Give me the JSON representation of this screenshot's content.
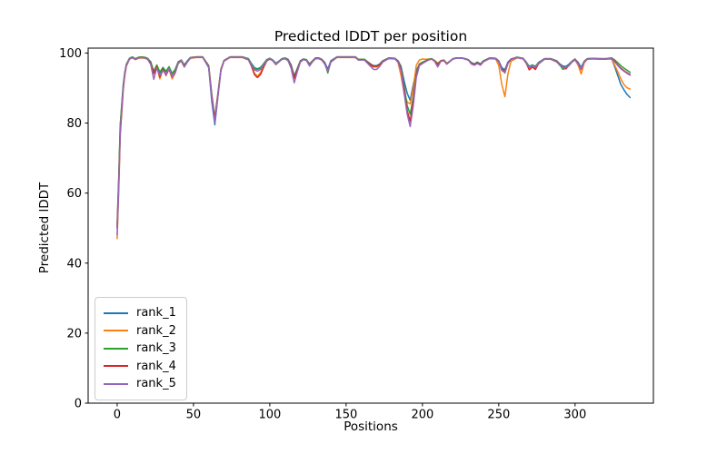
{
  "figure": {
    "title": "Predicted lDDT per position",
    "xlabel": "Positions",
    "ylabel": "Predicted lDDT"
  },
  "chart_data": {
    "type": "line",
    "title": "Predicted lDDT per position",
    "xlabel": "Positions",
    "ylabel": "Predicted lDDT",
    "xlim": [
      -19.0,
      351.3
    ],
    "ylim": [
      0,
      101.4
    ],
    "xticks": [
      0,
      50,
      100,
      150,
      200,
      250,
      300
    ],
    "yticks": [
      0,
      20,
      40,
      60,
      80,
      100
    ],
    "grid": false,
    "legend_position": "lower left",
    "x": [
      0,
      1,
      2,
      3,
      4,
      5,
      6,
      8,
      10,
      12,
      14,
      16,
      18,
      20,
      22,
      24,
      26,
      28,
      30,
      32,
      34,
      36,
      38,
      40,
      42,
      44,
      46,
      48,
      52,
      56,
      60,
      62,
      64,
      66,
      68,
      70,
      74,
      78,
      82,
      86,
      88,
      90,
      92,
      94,
      96,
      98,
      100,
      102,
      104,
      106,
      108,
      110,
      112,
      114,
      116,
      118,
      120,
      122,
      124,
      126,
      128,
      130,
      132,
      134,
      136,
      138,
      140,
      144,
      148,
      152,
      156,
      158,
      162,
      166,
      168,
      170,
      172,
      174,
      178,
      182,
      184,
      186,
      188,
      190,
      192,
      194,
      196,
      198,
      200,
      202,
      204,
      206,
      208,
      210,
      212,
      214,
      216,
      218,
      220,
      222,
      224,
      226,
      228,
      230,
      232,
      234,
      236,
      238,
      240,
      244,
      248,
      250,
      252,
      254,
      256,
      258,
      262,
      266,
      268,
      270,
      272,
      274,
      276,
      280,
      284,
      288,
      290,
      292,
      294,
      296,
      298,
      300,
      302,
      304,
      306,
      308,
      312,
      316,
      320,
      324,
      326,
      328,
      330,
      332,
      334,
      336
    ],
    "series": [
      {
        "name": "rank_1",
        "color": "#1f77b4",
        "values": [
          50.0,
          63.0,
          79.0,
          85.0,
          90.5,
          94.2,
          96.6,
          98.4,
          98.8,
          98.3,
          98.7,
          98.8,
          98.7,
          98.4,
          97.5,
          94.5,
          96.5,
          94.3,
          95.9,
          94.6,
          96.0,
          94.0,
          95.2,
          97.5,
          98.0,
          96.6,
          97.8,
          98.7,
          98.9,
          98.9,
          95.8,
          86.0,
          79.5,
          87.5,
          95.0,
          97.8,
          98.9,
          98.9,
          98.9,
          98.4,
          97.0,
          95.8,
          95.5,
          95.9,
          97.0,
          98.1,
          98.5,
          98.0,
          97.1,
          97.7,
          98.4,
          98.6,
          98.2,
          96.6,
          93.4,
          95.6,
          97.8,
          98.3,
          98.1,
          96.9,
          97.8,
          98.6,
          98.6,
          98.2,
          97.3,
          95.4,
          97.8,
          98.9,
          98.9,
          98.9,
          98.9,
          98.2,
          98.2,
          96.9,
          96.4,
          96.4,
          96.9,
          97.8,
          98.6,
          98.5,
          97.8,
          96.2,
          92.0,
          88.5,
          86.5,
          91.0,
          95.0,
          96.8,
          97.2,
          97.6,
          98.1,
          98.4,
          97.8,
          96.8,
          97.7,
          98.0,
          97.0,
          97.7,
          98.4,
          98.6,
          98.6,
          98.6,
          98.4,
          98.1,
          97.3,
          96.9,
          97.4,
          96.9,
          97.8,
          98.6,
          98.5,
          97.8,
          95.8,
          95.2,
          97.4,
          98.3,
          98.8,
          98.5,
          97.4,
          96.2,
          96.6,
          96.2,
          97.3,
          98.4,
          98.4,
          97.8,
          96.9,
          96.3,
          96.2,
          96.8,
          97.7,
          98.3,
          97.3,
          95.9,
          97.7,
          98.4,
          98.5,
          98.4,
          98.4,
          98.4,
          96.0,
          93.5,
          91.0,
          89.5,
          88.2,
          87.3
        ]
      },
      {
        "name": "rank_2",
        "color": "#ff7f0e",
        "values": [
          47.0,
          60.0,
          76.0,
          83.0,
          89.5,
          93.5,
          96.2,
          98.2,
          98.6,
          98.1,
          98.5,
          98.6,
          98.5,
          98.2,
          96.8,
          94.0,
          96.0,
          92.6,
          95.2,
          93.8,
          95.4,
          92.6,
          94.2,
          97.0,
          97.7,
          96.0,
          97.4,
          98.5,
          98.7,
          98.7,
          96.0,
          87.5,
          81.0,
          88.0,
          95.1,
          97.7,
          98.7,
          98.7,
          98.7,
          98.0,
          96.2,
          94.2,
          93.3,
          94.5,
          96.2,
          97.7,
          98.3,
          97.8,
          96.7,
          97.5,
          98.2,
          98.4,
          97.8,
          95.9,
          92.7,
          95.0,
          97.5,
          98.1,
          97.9,
          96.4,
          97.5,
          98.4,
          98.4,
          98.0,
          96.9,
          94.8,
          97.5,
          98.7,
          98.7,
          98.7,
          98.7,
          98.0,
          98.0,
          96.4,
          96.0,
          96.0,
          96.5,
          97.5,
          98.4,
          98.3,
          97.3,
          93.5,
          88.5,
          86.0,
          85.5,
          90.0,
          96.5,
          98.0,
          98.3,
          98.2,
          98.3,
          98.4,
          97.9,
          97.1,
          97.8,
          98.0,
          97.1,
          97.7,
          98.3,
          98.5,
          98.5,
          98.5,
          98.3,
          98.0,
          97.0,
          96.6,
          97.1,
          96.6,
          97.5,
          98.4,
          98.3,
          96.5,
          91.0,
          87.5,
          94.0,
          97.7,
          98.6,
          98.3,
          97.0,
          95.8,
          96.2,
          95.8,
          96.9,
          98.2,
          98.2,
          97.4,
          96.5,
          95.9,
          95.8,
          96.4,
          97.4,
          98.0,
          96.5,
          94.0,
          97.2,
          98.2,
          98.3,
          98.2,
          98.2,
          98.3,
          96.5,
          94.6,
          92.6,
          91.0,
          90.1,
          89.7
        ]
      },
      {
        "name": "rank_3",
        "color": "#2ca02c",
        "values": [
          51.0,
          64.0,
          79.5,
          85.5,
          91.0,
          94.5,
          96.8,
          98.5,
          98.9,
          98.4,
          98.8,
          98.9,
          98.8,
          98.5,
          97.3,
          94.8,
          96.6,
          94.6,
          95.8,
          94.8,
          96.1,
          94.2,
          95.3,
          97.4,
          98.0,
          96.5,
          97.7,
          98.7,
          98.9,
          98.9,
          96.4,
          88.0,
          81.5,
          88.5,
          95.4,
          97.9,
          98.9,
          98.9,
          98.9,
          98.3,
          96.8,
          95.5,
          95.3,
          95.7,
          96.9,
          98.0,
          98.5,
          98.0,
          97.0,
          97.7,
          98.4,
          98.6,
          98.1,
          96.4,
          93.1,
          95.4,
          97.7,
          98.3,
          98.1,
          96.8,
          97.7,
          98.6,
          98.6,
          98.2,
          97.2,
          94.3,
          97.6,
          98.9,
          98.9,
          98.9,
          98.9,
          98.2,
          98.2,
          96.8,
          96.3,
          96.3,
          96.8,
          97.7,
          98.6,
          98.5,
          97.7,
          95.8,
          90.5,
          85.0,
          82.5,
          87.5,
          94.0,
          96.9,
          97.4,
          97.8,
          98.2,
          98.4,
          97.8,
          96.9,
          97.8,
          98.0,
          97.0,
          97.7,
          98.4,
          98.6,
          98.6,
          98.6,
          98.4,
          98.1,
          97.2,
          96.8,
          97.3,
          96.8,
          97.7,
          98.6,
          98.5,
          97.7,
          95.5,
          94.3,
          97.0,
          98.2,
          98.8,
          98.5,
          97.3,
          96.1,
          96.5,
          96.1,
          97.2,
          98.4,
          98.4,
          97.7,
          96.6,
          95.3,
          95.7,
          96.6,
          97.6,
          98.3,
          97.0,
          95.5,
          97.6,
          98.4,
          98.5,
          98.4,
          98.4,
          98.6,
          98.0,
          97.2,
          96.4,
          95.7,
          95.1,
          94.5
        ]
      },
      {
        "name": "rank_4",
        "color": "#d62728",
        "values": [
          50.0,
          62.5,
          77.5,
          83.5,
          89.8,
          93.8,
          96.4,
          98.3,
          98.7,
          98.2,
          98.6,
          98.7,
          98.6,
          98.3,
          97.0,
          94.2,
          96.1,
          93.2,
          95.4,
          93.6,
          95.5,
          93.2,
          94.5,
          97.1,
          97.8,
          96.1,
          97.5,
          98.6,
          98.8,
          98.8,
          96.1,
          87.8,
          81.0,
          88.2,
          95.2,
          97.8,
          98.8,
          98.8,
          98.8,
          98.1,
          96.3,
          93.8,
          93.0,
          93.9,
          96.0,
          97.7,
          98.3,
          97.8,
          96.7,
          97.5,
          98.2,
          98.4,
          97.9,
          96.0,
          92.9,
          95.1,
          97.6,
          98.2,
          98.0,
          96.5,
          97.6,
          98.5,
          98.5,
          98.1,
          97.0,
          94.9,
          97.5,
          98.8,
          98.8,
          98.8,
          98.8,
          98.1,
          98.1,
          96.6,
          96.2,
          96.2,
          96.7,
          97.6,
          98.5,
          98.4,
          97.6,
          95.5,
          89.5,
          83.5,
          80.5,
          86.5,
          93.5,
          96.6,
          97.1,
          97.6,
          98.0,
          98.3,
          97.7,
          96.7,
          97.7,
          97.9,
          96.9,
          97.6,
          98.3,
          98.5,
          98.5,
          98.5,
          98.3,
          98.0,
          97.1,
          96.7,
          97.2,
          96.7,
          97.6,
          98.5,
          98.4,
          97.6,
          95.3,
          94.7,
          97.1,
          98.2,
          98.7,
          98.4,
          97.1,
          95.2,
          96.0,
          95.3,
          96.9,
          98.3,
          98.3,
          97.6,
          96.6,
          96.0,
          95.5,
          96.5,
          97.5,
          98.2,
          97.0,
          95.3,
          97.5,
          98.3,
          98.4,
          98.3,
          98.3,
          98.5,
          97.6,
          96.6,
          95.7,
          95.0,
          94.4,
          93.9
        ]
      },
      {
        "name": "rank_5",
        "color": "#9467bd",
        "values": [
          48.0,
          61.0,
          77.0,
          84.5,
          90.2,
          94.0,
          96.5,
          98.3,
          98.7,
          98.2,
          98.6,
          98.7,
          98.6,
          98.2,
          96.7,
          92.5,
          95.8,
          93.6,
          95.0,
          93.9,
          95.6,
          93.3,
          94.3,
          97.2,
          97.8,
          96.0,
          97.5,
          98.6,
          98.8,
          98.8,
          95.9,
          87.0,
          80.0,
          87.8,
          95.0,
          97.7,
          98.8,
          98.8,
          98.8,
          98.1,
          96.4,
          95.2,
          94.8,
          95.3,
          96.6,
          97.8,
          98.4,
          97.8,
          96.8,
          97.5,
          98.2,
          98.4,
          97.8,
          95.6,
          91.5,
          94.6,
          97.4,
          98.1,
          97.9,
          96.3,
          97.5,
          98.4,
          98.4,
          98.0,
          96.8,
          94.8,
          97.4,
          98.8,
          98.8,
          98.8,
          98.8,
          98.0,
          98.0,
          96.2,
          95.3,
          95.3,
          96.2,
          97.4,
          98.5,
          98.4,
          97.4,
          95.0,
          88.5,
          82.5,
          79.0,
          85.0,
          93.0,
          96.4,
          97.0,
          97.5,
          98.0,
          98.3,
          97.6,
          96.0,
          97.6,
          97.8,
          96.8,
          97.6,
          98.3,
          98.5,
          98.5,
          98.5,
          98.3,
          98.0,
          96.9,
          96.5,
          97.0,
          96.5,
          97.5,
          98.5,
          98.4,
          97.5,
          95.0,
          94.5,
          97.0,
          98.1,
          98.7,
          98.4,
          97.1,
          95.9,
          96.3,
          95.9,
          97.0,
          98.3,
          98.3,
          97.5,
          96.5,
          95.9,
          95.8,
          96.4,
          97.5,
          98.1,
          96.9,
          95.4,
          97.5,
          98.3,
          98.4,
          98.3,
          98.3,
          98.4,
          97.4,
          96.4,
          95.5,
          94.8,
          94.2,
          93.7
        ]
      }
    ]
  }
}
